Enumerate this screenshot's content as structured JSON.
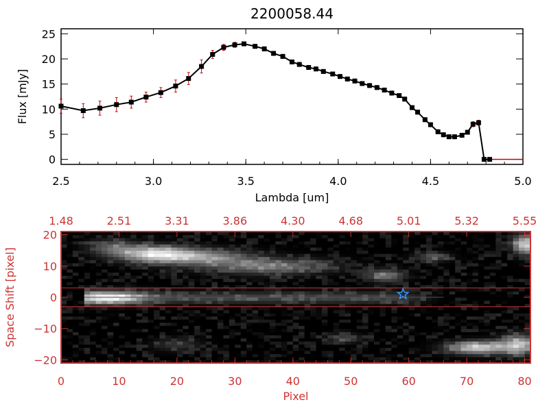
{
  "chart_data": [
    {
      "type": "line",
      "title": "2200058.44",
      "xlabel": "Lambda [um]",
      "ylabel": "Flux [mJy]",
      "xlim": [
        2.5,
        5.0
      ],
      "ylim": [
        -1,
        26
      ],
      "x_ticks": [
        2.5,
        3.0,
        3.5,
        4.0,
        4.5,
        5.0
      ],
      "x_tick_labels": [
        "2.5",
        "3.0",
        "3.5",
        "4.0",
        "4.5",
        "5.0"
      ],
      "y_ticks": [
        0,
        5,
        10,
        15,
        20,
        25
      ],
      "y_tick_labels": [
        "0",
        "5",
        "10",
        "15",
        "20",
        "25"
      ],
      "grid": false,
      "series": [
        {
          "color": "#000000",
          "marker_color": "#000000",
          "error_color": "#cc0000",
          "x": [
            2.5,
            2.62,
            2.71,
            2.8,
            2.88,
            2.96,
            3.04,
            3.12,
            3.19,
            3.26,
            3.32,
            3.38,
            3.44,
            3.49,
            3.55,
            3.6,
            3.65,
            3.7,
            3.75,
            3.79,
            3.84,
            3.88,
            3.92,
            3.97,
            4.01,
            4.05,
            4.09,
            4.13,
            4.17,
            4.21,
            4.25,
            4.29,
            4.33,
            4.36,
            4.4,
            4.43,
            4.47,
            4.5,
            4.54,
            4.57,
            4.6,
            4.63,
            4.67,
            4.7,
            4.73,
            4.76,
            4.79,
            4.82
          ],
          "y": [
            10.6,
            9.7,
            10.2,
            10.9,
            11.4,
            12.4,
            13.3,
            14.6,
            16.1,
            18.5,
            20.9,
            22.3,
            22.8,
            23.0,
            22.5,
            22.0,
            21.1,
            20.5,
            19.4,
            18.9,
            18.3,
            18.0,
            17.5,
            17.0,
            16.5,
            16.0,
            15.6,
            15.1,
            14.7,
            14.3,
            13.8,
            13.2,
            12.7,
            12.0,
            10.3,
            9.4,
            7.9,
            6.9,
            5.5,
            4.9,
            4.5,
            4.5,
            4.8,
            5.4,
            7.0,
            7.3,
            0.0,
            0.0
          ],
          "yerr": [
            1.4,
            1.4,
            1.4,
            1.4,
            1.2,
            1.0,
            1.0,
            1.2,
            1.2,
            1.3,
            0.8,
            0.6,
            0.5,
            0.4,
            0.4,
            0.4,
            0.4,
            0.4,
            0.4,
            0.4,
            0.4,
            0.4,
            0.4,
            0.4,
            0.4,
            0.4,
            0.4,
            0.4,
            0.4,
            0.4,
            0.4,
            0.4,
            0.4,
            0.4,
            0.4,
            0.4,
            0.4,
            0.4,
            0.4,
            0.4,
            0.4,
            0.4,
            0.4,
            0.4,
            0.5,
            0.5,
            0.0,
            0.0
          ]
        }
      ],
      "zero_segment": {
        "x": [
          4.82,
          5.0
        ],
        "y": 0,
        "color": "#cc0000"
      }
    },
    {
      "type": "heatmap",
      "xlabel": "Pixel",
      "ylabel": "Space Shift [pixel]",
      "xlim": [
        0,
        81
      ],
      "ylim": [
        -21,
        21
      ],
      "x_ticks": [
        0,
        10,
        20,
        30,
        40,
        50,
        60,
        70,
        80
      ],
      "x_tick_labels": [
        "0",
        "10",
        "20",
        "30",
        "40",
        "50",
        "60",
        "70",
        "80"
      ],
      "y_ticks": [
        -20,
        -10,
        0,
        10,
        20
      ],
      "y_tick_labels": [
        "−20",
        "−10",
        "0",
        "10",
        "20"
      ],
      "top_ticks": [
        0,
        10,
        20,
        30,
        40,
        50,
        60,
        70,
        80
      ],
      "top_tick_labels": [
        "1.48",
        "2.51",
        "3.31",
        "3.86",
        "4.30",
        "4.68",
        "5.01",
        "5.32",
        "5.55"
      ],
      "colormap": "grayscale",
      "frame_color": "#cc3333",
      "extraction_band": {
        "y_lower": -3,
        "y_upper": 3,
        "trace_y": 0,
        "color": "#cc3333"
      },
      "marker": {
        "symbol": "star",
        "x": 59,
        "y": 1,
        "color": "#3399ff"
      },
      "features": [
        {
          "kind": "trace",
          "x0": 4,
          "x1": 66,
          "y": 0,
          "width": 4,
          "peak_x": 8,
          "peak": 1.0,
          "tail": 0.25
        },
        {
          "kind": "blob",
          "x": 16,
          "y": 14,
          "sx": 6,
          "sy": 2.5,
          "a": 0.75
        },
        {
          "kind": "blob",
          "x": 24,
          "y": 13,
          "sx": 8,
          "sy": 2.5,
          "a": 0.55
        },
        {
          "kind": "blob",
          "x": 36,
          "y": 10,
          "sx": 10,
          "sy": 2.5,
          "a": 0.45
        },
        {
          "kind": "blob",
          "x": 9,
          "y": 16,
          "sx": 4,
          "sy": 2.5,
          "a": 0.35
        },
        {
          "kind": "blob",
          "x": 56,
          "y": 7,
          "sx": 3,
          "sy": 2,
          "a": 0.45
        },
        {
          "kind": "blob",
          "x": 64,
          "y": 13,
          "sx": 3,
          "sy": 1.5,
          "a": 0.3
        },
        {
          "kind": "blob",
          "x": 80,
          "y": 17,
          "sx": 2,
          "sy": 3,
          "a": 0.8
        },
        {
          "kind": "blob",
          "x": 72,
          "y": -16,
          "sx": 5,
          "sy": 2,
          "a": 0.8
        },
        {
          "kind": "blob",
          "x": 79,
          "y": -15,
          "sx": 3,
          "sy": 3,
          "a": 0.7
        },
        {
          "kind": "blob",
          "x": 49,
          "y": -13,
          "sx": 3,
          "sy": 1.5,
          "a": 0.25
        },
        {
          "kind": "blob",
          "x": 20,
          "y": -15,
          "sx": 4,
          "sy": 2,
          "a": 0.2
        }
      ]
    }
  ]
}
